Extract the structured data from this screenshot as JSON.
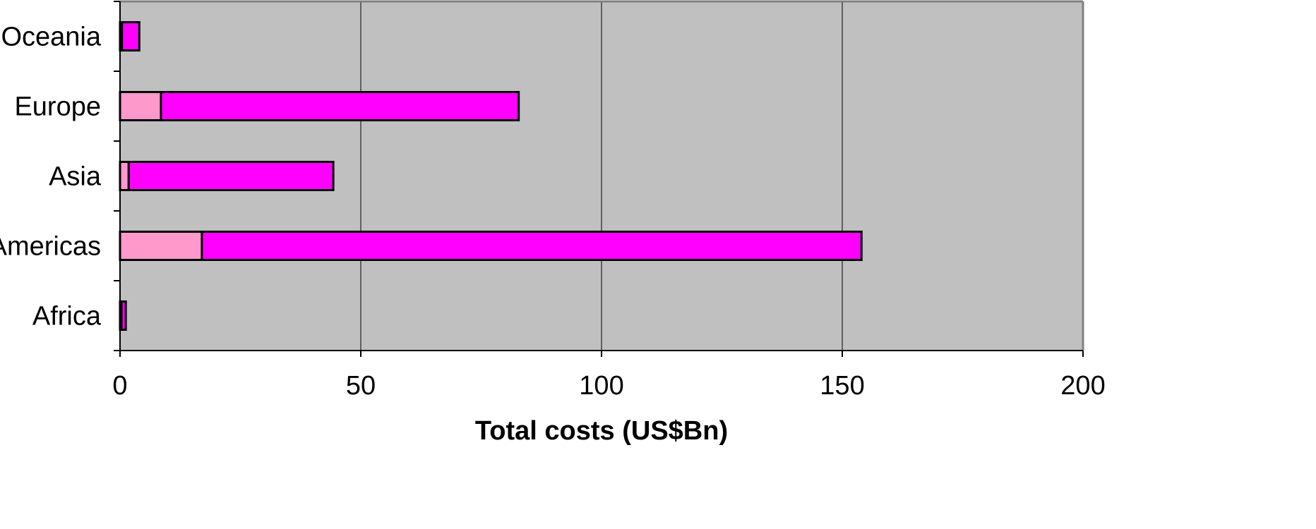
{
  "colors": {
    "plot_background": "#c0c0c0",
    "gridline": "#000000",
    "frame": "#808080",
    "bar_outline": "#000000"
  },
  "chart_data": {
    "type": "bar",
    "orientation": "horizontal",
    "stacked": true,
    "categories": [
      "Africa",
      "Americas",
      "Asia",
      "Europe",
      "Oceania"
    ],
    "series": [
      {
        "color": "#ff99cc",
        "values": [
          0.3,
          17,
          1.8,
          8.5,
          0.4
        ]
      },
      {
        "color": "#ff00ff",
        "values": [
          0.9,
          137,
          42.5,
          74.3,
          3.6
        ]
      }
    ],
    "title": "",
    "xlabel": "Total costs (US$Bn)",
    "ylabel": "",
    "xlim": [
      0,
      200
    ],
    "xticks": [
      0,
      50,
      100,
      150,
      200
    ],
    "xtick_labels": [
      "0",
      "50",
      "100",
      "150",
      "200"
    ],
    "grid": "vertical",
    "legend": "none"
  }
}
